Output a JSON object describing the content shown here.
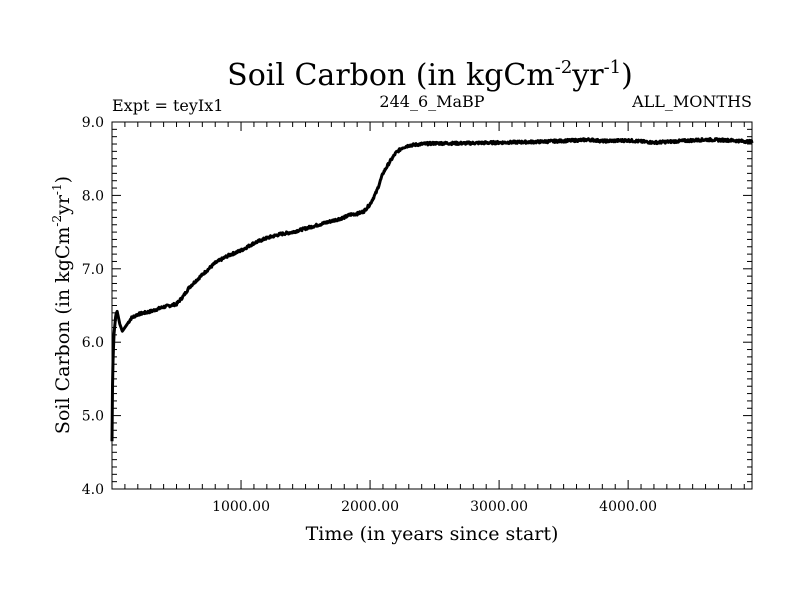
{
  "chart_data": {
    "type": "line",
    "title_main": "Soil Carbon (in kgCm",
    "title_sup1": "-2",
    "title_mid": "yr",
    "title_sup2": "-1",
    "title_end": ")",
    "subtitle_left": "Expt = teyIx1",
    "subtitle_center": "244_6_MaBP",
    "subtitle_right": "ALL_MONTHS",
    "xlabel": "Time (in years since start)",
    "ylabel_main": "Soil Carbon (in kgCm",
    "ylabel_sup1": "-2",
    "ylabel_mid": "yr",
    "ylabel_sup2": "-1",
    "ylabel_end": ")",
    "xlim": [
      0,
      4960
    ],
    "ylim": [
      4.0,
      9.0
    ],
    "x_ticks": [
      1000,
      2000,
      3000,
      4000
    ],
    "x_tick_labels": [
      "1000.00",
      "2000.00",
      "3000.00",
      "4000.00"
    ],
    "y_ticks": [
      4.0,
      5.0,
      6.0,
      7.0,
      8.0,
      9.0
    ],
    "y_tick_labels": [
      "4.0",
      "5.0",
      "6.0",
      "7.0",
      "8.0",
      "9.0"
    ],
    "series": [
      {
        "name": "Soil Carbon",
        "x": [
          0,
          5,
          15,
          30,
          40,
          60,
          80,
          100,
          150,
          200,
          300,
          400,
          500,
          550,
          600,
          700,
          800,
          900,
          1000,
          1100,
          1200,
          1300,
          1400,
          1500,
          1600,
          1700,
          1800,
          1850,
          1900,
          1950,
          2000,
          2050,
          2100,
          2150,
          2200,
          2250,
          2300,
          2400,
          2500,
          2700,
          3000,
          3300,
          3600,
          3700,
          3800,
          4000,
          4200,
          4400,
          4600,
          4800,
          4960
        ],
        "y": [
          4.65,
          5.6,
          6.1,
          6.38,
          6.42,
          6.25,
          6.15,
          6.2,
          6.33,
          6.38,
          6.42,
          6.48,
          6.52,
          6.62,
          6.75,
          6.92,
          7.08,
          7.18,
          7.25,
          7.35,
          7.42,
          7.47,
          7.5,
          7.55,
          7.6,
          7.65,
          7.7,
          7.74,
          7.75,
          7.78,
          7.88,
          8.05,
          8.3,
          8.45,
          8.58,
          8.65,
          8.68,
          8.7,
          8.71,
          8.71,
          8.72,
          8.73,
          8.75,
          8.76,
          8.74,
          8.75,
          8.72,
          8.74,
          8.76,
          8.75,
          8.73
        ]
      }
    ]
  }
}
